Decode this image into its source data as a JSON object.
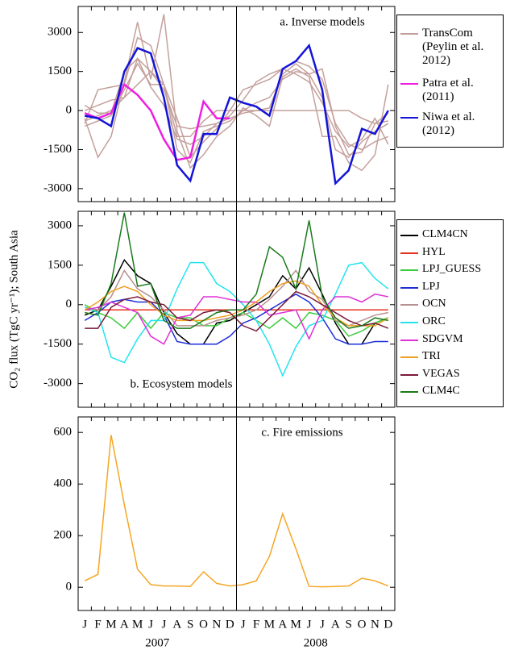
{
  "chart_data": [
    {
      "type": "line",
      "annotation": "a. Inverse models",
      "ylim": [
        -3500,
        4000
      ],
      "yticks": [
        3000,
        1500,
        0,
        -1500,
        -3000
      ],
      "series": [
        {
          "name": "TransCom (Peylin et al. 2012)",
          "color": "#c4a09c",
          "runs": [
            [
              -500,
              800,
              900,
              1000,
              2800,
              2500,
              1000,
              -300,
              -1800,
              -1200,
              -700,
              0,
              800,
              1000,
              1200,
              1600,
              1900,
              1700,
              1200,
              -500,
              -1300,
              -1500,
              -1200,
              -1000
            ],
            [
              -300,
              -1800,
              -1000,
              1100,
              3400,
              1200,
              3700,
              -800,
              -2200,
              -1700,
              -1000,
              -600,
              100,
              -200,
              -600,
              1300,
              1600,
              1300,
              -1000,
              -1000,
              -2000,
              -2300,
              -1700,
              1000
            ],
            [
              200,
              -100,
              -100,
              1500,
              2000,
              1500,
              800,
              -600,
              -700,
              -600,
              -500,
              -300,
              -100,
              0,
              100,
              1400,
              1800,
              1400,
              500,
              -1500,
              -1800,
              -1200,
              -800,
              -500
            ],
            [
              -400,
              -200,
              0,
              500,
              1000,
              1500,
              1000,
              -1500,
              -2000,
              -800,
              -600,
              -400,
              0,
              300,
              500,
              1200,
              1500,
              1400,
              1600,
              -600,
              -1700,
              -1600,
              -500,
              -100
            ],
            [
              -600,
              -400,
              -200,
              800,
              1800,
              1000,
              1000,
              -1000,
              -1000,
              -400,
              0,
              0,
              0,
              0,
              0,
              0,
              0,
              0,
              0,
              0,
              0,
              -300,
              -500,
              -400
            ],
            [
              0,
              200,
              400,
              500,
              2000,
              900,
              200,
              -1100,
              -1300,
              -1000,
              -500,
              -200,
              400,
              1100,
              1400,
              1600,
              1400,
              1100,
              300,
              -800,
              -1400,
              -1100,
              -300,
              -1300
            ]
          ]
        },
        {
          "name": "Patra et al. (2011)",
          "color": "#ee1fe0",
          "values": [
            -100,
            -300,
            -100,
            1000,
            600,
            0,
            -1100,
            -1900,
            -1800,
            350,
            -300,
            -300,
            null,
            null,
            null,
            null,
            null,
            null,
            null,
            null,
            null,
            null,
            null,
            null
          ]
        },
        {
          "name": "Niwa et al. (2012)",
          "color": "#1414d8",
          "values": [
            -200,
            -300,
            -600,
            1500,
            2400,
            2200,
            500,
            -2100,
            -2700,
            -900,
            -900,
            500,
            300,
            150,
            -200,
            1600,
            1900,
            2500,
            800,
            -2800,
            -2300,
            -700,
            -900,
            0
          ]
        }
      ]
    },
    {
      "type": "line",
      "annotation": "b. Ecosystem models",
      "y_label": "CO₂ flux (TgC yr⁻¹); South Asia",
      "ylim": [
        -3900,
        3550
      ],
      "yticks": [
        3000,
        1500,
        0,
        -1500,
        -3000
      ],
      "series": [
        {
          "name": "CLM4CN",
          "color": "#000000",
          "values": [
            -400,
            -200,
            700,
            1700,
            1100,
            800,
            -300,
            -1100,
            -1500,
            -1500,
            -700,
            -600,
            -300,
            0,
            300,
            1100,
            600,
            1400,
            400,
            -700,
            -1500,
            -1500,
            -700,
            -500
          ]
        },
        {
          "name": "HYL",
          "color": "#e8311c",
          "values": [
            -200,
            -200,
            -200,
            -200,
            -200,
            -200,
            -200,
            -200,
            -200,
            -200,
            -200,
            -200,
            -200,
            -200,
            -200,
            -200,
            -200,
            -200,
            -200,
            -200,
            -200,
            -200,
            -200,
            -200
          ]
        },
        {
          "name": "LPJ_GUESS",
          "color": "#3ccc3c",
          "values": [
            0,
            -300,
            -500,
            -900,
            -300,
            -900,
            -300,
            -500,
            -500,
            -800,
            -800,
            -500,
            -300,
            -600,
            -900,
            -500,
            -900,
            -300,
            -400,
            -600,
            -1200,
            -1000,
            -700,
            -500
          ]
        },
        {
          "name": "LPJ",
          "color": "#1f2fd8",
          "values": [
            -600,
            -300,
            100,
            200,
            100,
            100,
            -400,
            -1400,
            -1500,
            -1500,
            -1500,
            -1200,
            -700,
            -500,
            -200,
            100,
            400,
            100,
            -500,
            -1300,
            -1500,
            -1500,
            -1400,
            -1400
          ]
        },
        {
          "name": "OCN",
          "color": "#b89090",
          "values": [
            -100,
            -200,
            300,
            1300,
            600,
            300,
            -200,
            -800,
            -800,
            -800,
            -600,
            -500,
            -400,
            -200,
            200,
            700,
            1300,
            500,
            200,
            -600,
            -800,
            -600,
            -400,
            -300
          ]
        },
        {
          "name": "ORC",
          "color": "#22e4ee",
          "values": [
            -100,
            -300,
            -2000,
            -2200,
            -1300,
            -600,
            -600,
            600,
            1600,
            1600,
            800,
            500,
            0,
            -600,
            -1500,
            -2700,
            -1600,
            -800,
            -600,
            400,
            1500,
            1600,
            1000,
            600
          ]
        },
        {
          "name": "SDGVM",
          "color": "#e030d8",
          "values": [
            -200,
            -100,
            100,
            -100,
            -300,
            -1200,
            -1500,
            -500,
            -400,
            300,
            300,
            200,
            100,
            100,
            -400,
            -300,
            -200,
            -1300,
            -200,
            300,
            300,
            100,
            400,
            300
          ]
        },
        {
          "name": "TRI",
          "color": "#f0a020",
          "values": [
            -200,
            100,
            500,
            700,
            500,
            0,
            -400,
            -600,
            -600,
            -600,
            -500,
            -400,
            -200,
            100,
            500,
            800,
            900,
            700,
            0,
            -500,
            -800,
            -800,
            -800,
            -500
          ]
        },
        {
          "name": "VEGAS",
          "color": "#7a1a3a",
          "values": [
            -900,
            -900,
            -100,
            200,
            300,
            100,
            0,
            -500,
            -600,
            -300,
            -200,
            -300,
            -800,
            -1000,
            -500,
            0,
            500,
            300,
            0,
            -300,
            -600,
            -800,
            -700,
            -900
          ]
        },
        {
          "name": "CLM4C",
          "color": "#1a7a1a",
          "values": [
            -300,
            -400,
            800,
            3500,
            700,
            800,
            -600,
            -900,
            -900,
            -600,
            -300,
            -200,
            -200,
            400,
            2200,
            1800,
            600,
            3200,
            300,
            -500,
            -900,
            -800,
            -500,
            -600
          ]
        }
      ]
    },
    {
      "type": "line",
      "annotation": "c. Fire emissions",
      "ylim": [
        -90,
        660
      ],
      "yticks": [
        0,
        200,
        400,
        600
      ],
      "categories": [
        "J",
        "F",
        "M",
        "A",
        "M",
        "J",
        "J",
        "A",
        "S",
        "O",
        "N",
        "D",
        "J",
        "F",
        "M",
        "A",
        "M",
        "J",
        "J",
        "A",
        "S",
        "O",
        "N",
        "D"
      ],
      "year_labels": [
        "2007",
        "2008"
      ],
      "series": [
        {
          "color": "#f5a623",
          "values": [
            25,
            50,
            590,
            320,
            70,
            10,
            5,
            5,
            3,
            60,
            15,
            5,
            10,
            25,
            120,
            285,
            150,
            3,
            2,
            3,
            5,
            35,
            25,
            5
          ]
        }
      ]
    }
  ]
}
